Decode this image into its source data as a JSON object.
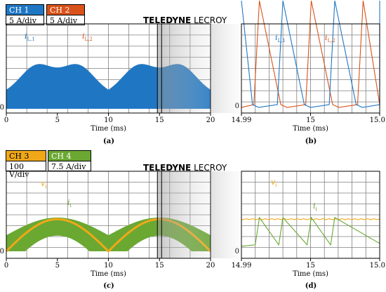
{
  "brand": {
    "bold": "TELEDYNE",
    "light": "LECROY"
  },
  "colors": {
    "ch1": "#1f77c4",
    "ch2": "#d95219",
    "ch3": "#f0a818",
    "ch4": "#6aa832",
    "grid": "#808080"
  },
  "top": {
    "ch1": {
      "label": "CH 1",
      "scale": "5 A/div"
    },
    "ch2": {
      "label": "CH 2",
      "scale": "5 A/div"
    }
  },
  "bottom": {
    "ch3": {
      "label": "CH 3",
      "scale": "100 V/div"
    },
    "ch4": {
      "label": "CH 4",
      "scale": "7.5 A/div"
    }
  },
  "chart_data": [
    {
      "panel": "(a)",
      "type": "line",
      "xlabel": "Time (ms)",
      "xlim": [
        0,
        20
      ],
      "x_ticks": [
        "0",
        "5",
        "10",
        "15",
        "20"
      ],
      "y_ticks": [
        "0"
      ],
      "series": [
        {
          "name": "iL,1",
          "channel": "CH 1",
          "envelope_amplitude_div": 3.5
        },
        {
          "name": "iL,2",
          "channel": "CH 2",
          "envelope_amplitude_div": 3.5
        }
      ]
    },
    {
      "panel": "(b)",
      "type": "line",
      "xlabel": "Time (ms)",
      "xlim": [
        14.99,
        15.01
      ],
      "x_ticks": [
        "14.99",
        "15",
        "15.01"
      ],
      "y_ticks": [
        "0"
      ],
      "series": [
        {
          "name": "iL,1",
          "channel": "CH 1",
          "peak_times_ms": [
            14.996,
            15.0035
          ]
        },
        {
          "name": "iL,2",
          "channel": "CH 2",
          "peak_times_ms": [
            14.9926,
            15.0001
          ]
        }
      ]
    },
    {
      "panel": "(c)",
      "type": "line",
      "xlabel": "Time (ms)",
      "xlim": [
        0,
        20
      ],
      "x_ticks": [
        "0",
        "5",
        "10",
        "15",
        "20"
      ],
      "y_ticks": [
        "0"
      ],
      "series": [
        {
          "name": "vi",
          "channel": "CH 3",
          "peak_div": 2.95
        },
        {
          "name": "ii",
          "channel": "CH 4",
          "envelope_amplitude_div": 2.5
        }
      ]
    },
    {
      "panel": "(d)",
      "type": "line",
      "xlabel": "Time (ms)",
      "xlim": [
        14.99,
        15.01
      ],
      "x_ticks": [
        "14.99",
        "15",
        "15.01"
      ],
      "y_ticks": [
        "0"
      ],
      "series": [
        {
          "name": "vi",
          "channel": "CH 3",
          "level_div": 2.95
        },
        {
          "name": "ii",
          "channel": "CH 4",
          "peak_times_ms": [
            14.9926,
            14.996,
            15.0001,
            15.0035
          ]
        }
      ]
    }
  ]
}
